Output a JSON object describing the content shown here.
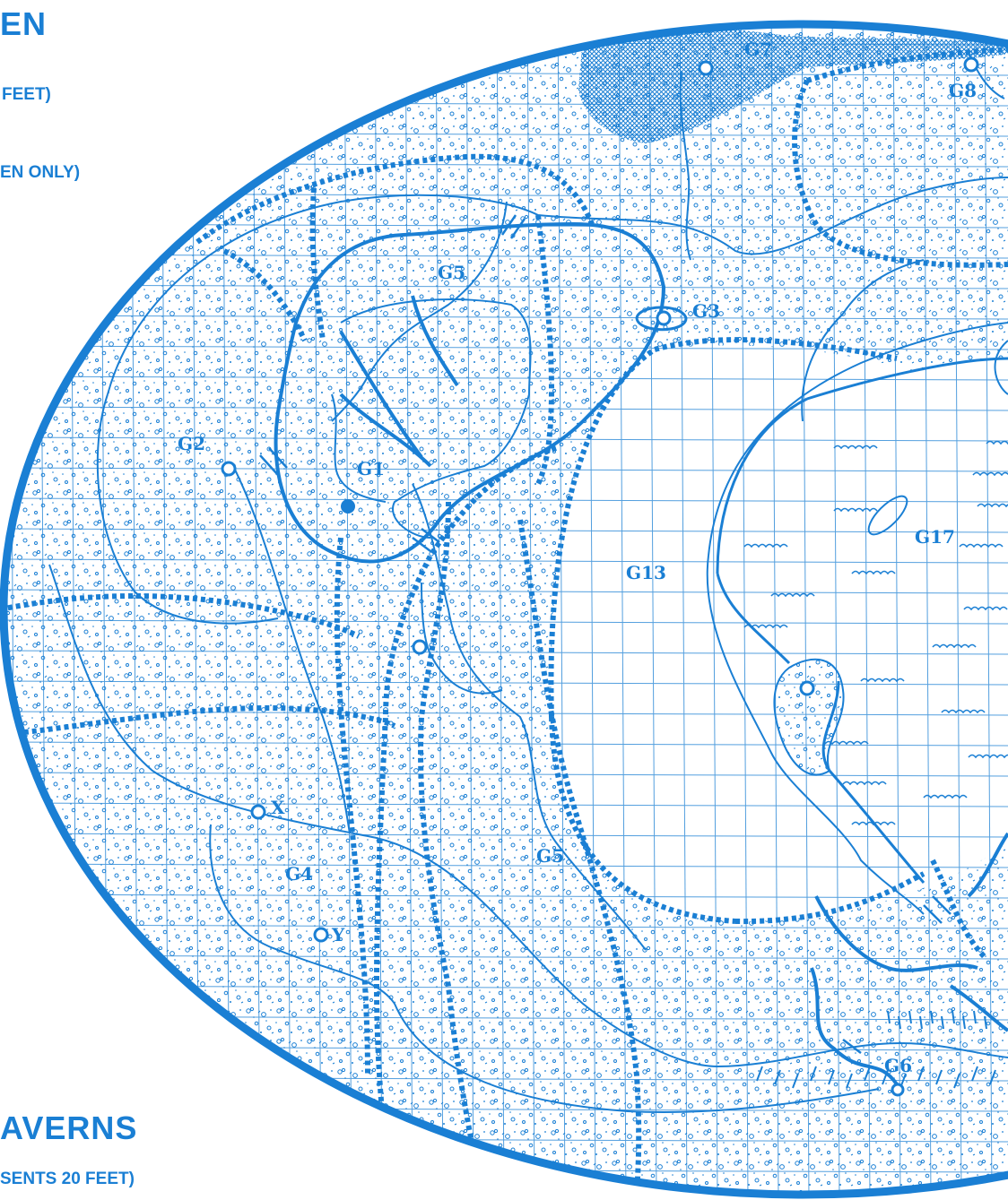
{
  "header": {
    "title_fragment": "EN",
    "subtitle_fragment": "FEET)",
    "note_fragment": "EN ONLY)"
  },
  "footer": {
    "title_fragment": "AVERNS",
    "scale_fragment": "SENTS 20 FEET)"
  },
  "map": {
    "ink_color": "#1a7fd4",
    "paper_color": "#ffffff",
    "area_labels": [
      "G1",
      "G2",
      "G3",
      "G4",
      "G5",
      "G5",
      "G6",
      "G7",
      "G8",
      "G13",
      "G17"
    ],
    "marker_labels": [
      "X",
      "Y"
    ]
  }
}
